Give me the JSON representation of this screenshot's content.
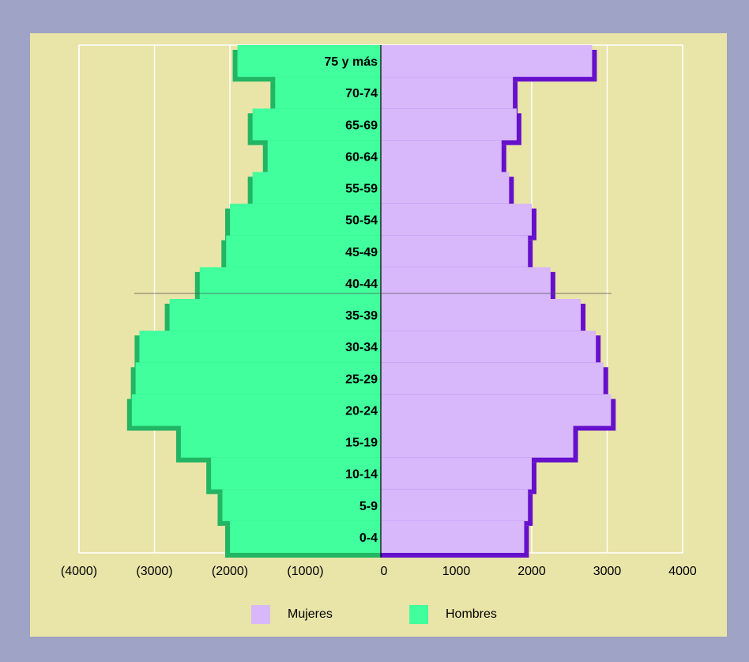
{
  "chart_data": {
    "type": "bar",
    "orientation": "horizontal",
    "categories": [
      "0-4",
      "5-9",
      "10-14",
      "15-19",
      "20-24",
      "25-29",
      "30-34",
      "35-39",
      "40-44",
      "45-49",
      "50-54",
      "55-59",
      "60-64",
      "65-69",
      "70-74",
      "75 y más"
    ],
    "series": [
      {
        "name": "Mujeres",
        "color": "#d8b8fb",
        "shadow_color": "#6610cc",
        "side": "right",
        "values": [
          1900,
          1950,
          2000,
          2550,
          3050,
          2950,
          2850,
          2650,
          2250,
          1950,
          2000,
          1700,
          1600,
          1800,
          1750,
          2800
        ]
      },
      {
        "name": "Hombres",
        "color": "#41ff9c",
        "shadow_color": "#22b563",
        "side": "left",
        "values": [
          2000,
          2100,
          2250,
          2650,
          3300,
          3250,
          3200,
          2800,
          2400,
          2050,
          2000,
          1700,
          1500,
          1700,
          1400,
          1900
        ]
      }
    ],
    "xlim": [
      -4000,
      4000
    ],
    "xticks": [
      -4000,
      -3000,
      -2000,
      -1000,
      0,
      1000,
      2000,
      3000,
      4000
    ],
    "xtick_labels": [
      "(4000)",
      "(3000)",
      "(2000)",
      "(1000)",
      "0",
      "1000",
      "2000",
      "3000",
      "4000"
    ],
    "legend_position": "bottom",
    "grid": true,
    "background": "#e9e4a8",
    "outer_background": "#9fa3c5"
  }
}
